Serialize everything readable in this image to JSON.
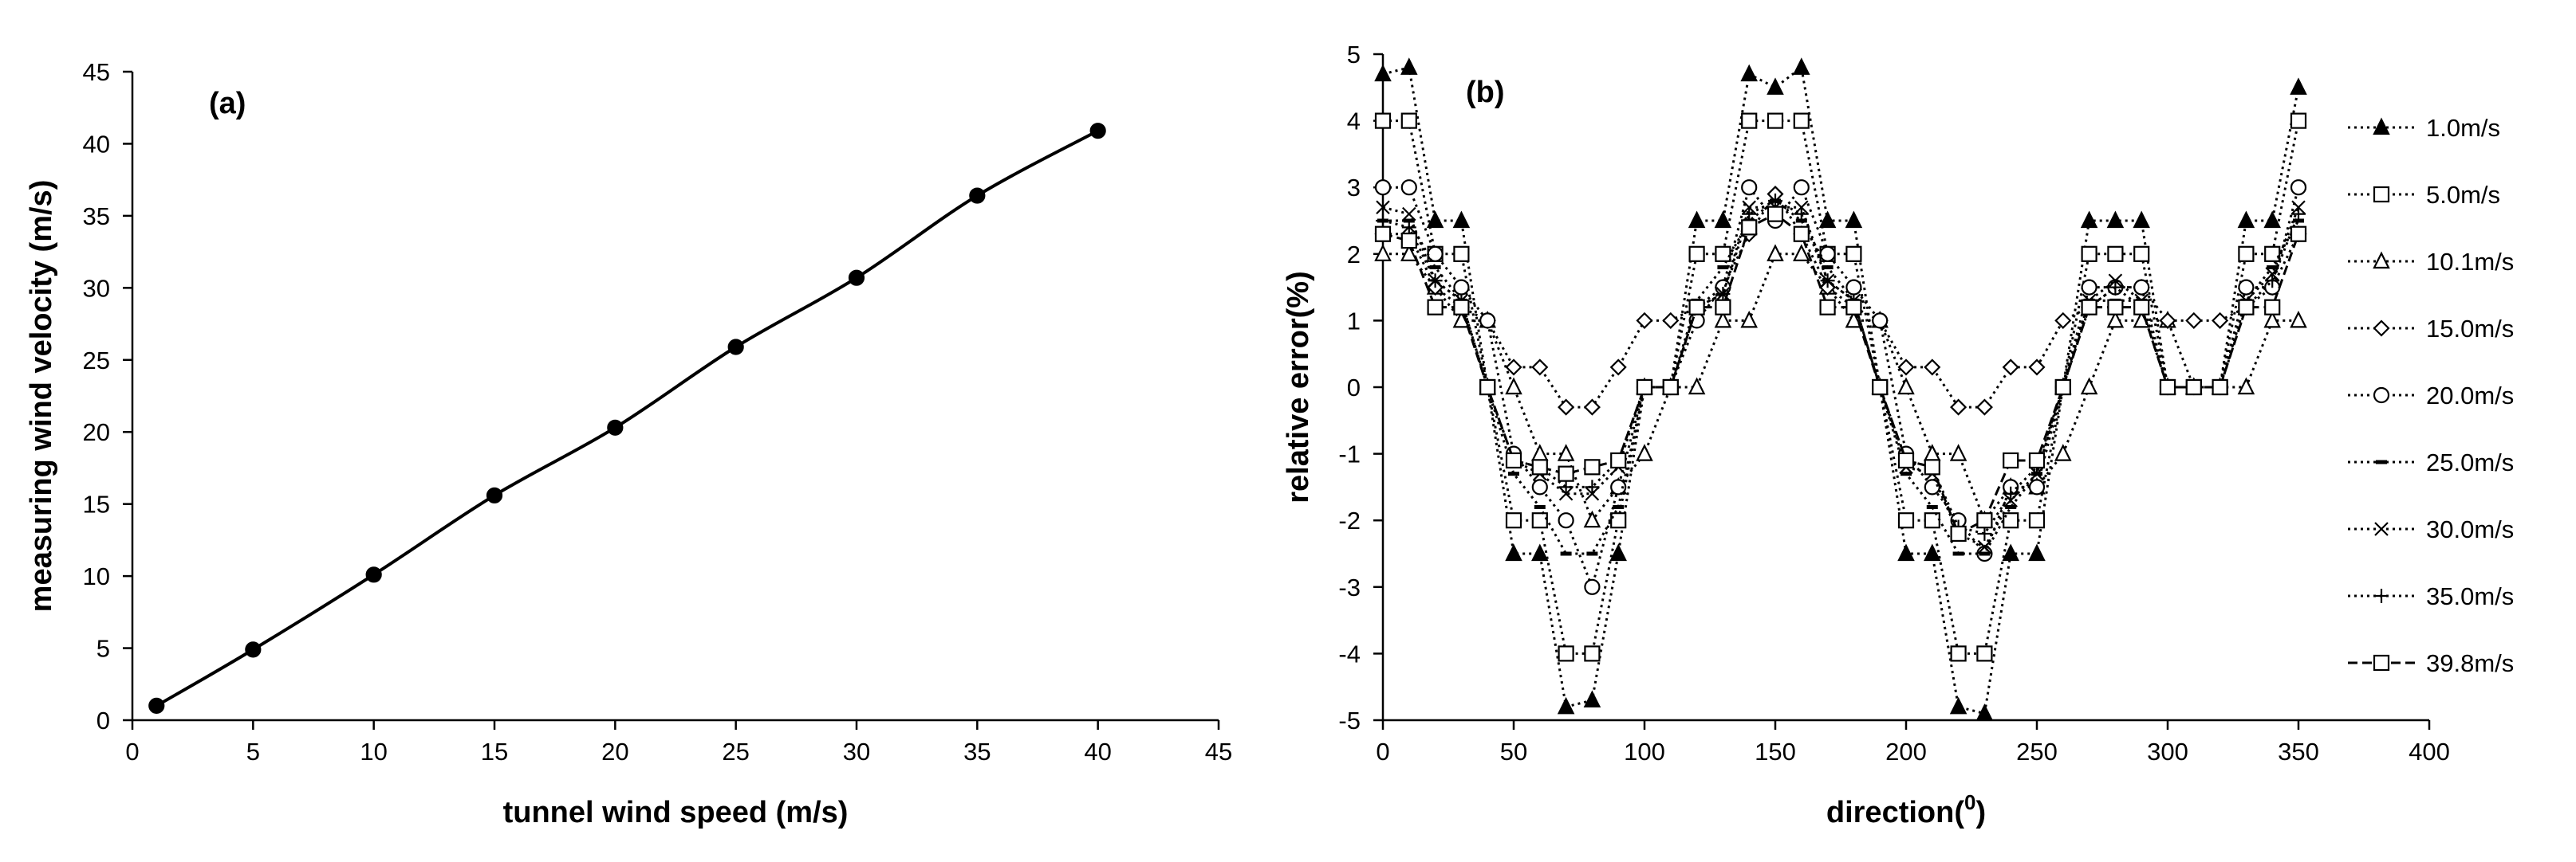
{
  "chart_data": [
    {
      "type": "line",
      "panel_label": "(a)",
      "xlabel": "tunnel wind speed (m/s)",
      "ylabel": "measuring wind velocity (m/s)",
      "xlim": [
        0,
        45
      ],
      "ylim": [
        0,
        45
      ],
      "xticks": [
        0,
        5,
        10,
        15,
        20,
        25,
        30,
        35,
        40,
        45
      ],
      "yticks": [
        0,
        5,
        10,
        15,
        20,
        25,
        30,
        35,
        40,
        45
      ],
      "series": [
        {
          "name": "measured",
          "marker": "circle-filled",
          "line": "solid",
          "x": [
            1,
            5,
            10,
            15,
            20,
            25,
            30,
            35,
            40
          ],
          "y": [
            1.0,
            4.9,
            10.1,
            15.6,
            20.3,
            25.9,
            30.7,
            36.4,
            40.9
          ]
        }
      ]
    },
    {
      "type": "line",
      "panel_label": "(b)",
      "xlabel": "direction(",
      "xlabel_sup": "0",
      "xlabel_end": ")",
      "ylabel": "relative error(%)",
      "xlim": [
        0,
        400
      ],
      "ylim": [
        -5,
        5
      ],
      "xticks": [
        0,
        50,
        100,
        150,
        200,
        250,
        300,
        350,
        400
      ],
      "yticks": [
        5,
        4,
        3,
        2,
        1,
        0,
        -1,
        -2,
        -3,
        -4,
        -5
      ],
      "x": [
        0,
        10,
        20,
        30,
        40,
        50,
        60,
        70,
        80,
        90,
        100,
        110,
        120,
        130,
        140,
        150,
        160,
        170,
        180,
        190,
        200,
        210,
        220,
        230,
        240,
        250,
        260,
        270,
        280,
        290,
        300,
        310,
        320,
        330,
        340,
        350
      ],
      "series": [
        {
          "name": "1.0m/s",
          "marker": "triangle-filled",
          "line": "dotted",
          "values": [
            4.7,
            4.8,
            2.5,
            2.5,
            0,
            -2.5,
            -2.5,
            -4.8,
            -4.7,
            -2.5,
            0,
            0,
            2.5,
            2.5,
            4.7,
            4.5,
            4.8,
            2.5,
            2.5,
            0,
            -2.5,
            -2.5,
            -4.8,
            -4.9,
            -2.5,
            -2.5,
            0,
            2.5,
            2.5,
            2.5,
            0,
            0,
            0,
            2.5,
            2.5,
            4.5
          ]
        },
        {
          "name": "5.0m/s",
          "marker": "square-open",
          "line": "dotted",
          "values": [
            4.0,
            4.0,
            2.0,
            2.0,
            0,
            -2.0,
            -2.0,
            -4.0,
            -4.0,
            -2.0,
            0,
            0,
            2.0,
            2.0,
            4.0,
            4.0,
            4.0,
            2.0,
            2.0,
            0,
            -2.0,
            -2.0,
            -4.0,
            -4.0,
            -2.0,
            -2.0,
            0,
            2.0,
            2.0,
            2.0,
            0,
            0,
            0,
            2.0,
            2.0,
            4.0
          ]
        },
        {
          "name": "10.1m/s",
          "marker": "triangle-open",
          "line": "dotted",
          "values": [
            2.0,
            2.0,
            1.5,
            1.0,
            1.0,
            0,
            -1.0,
            -1.0,
            -2.0,
            -1.5,
            -1.0,
            0,
            0,
            1.0,
            1.0,
            2.0,
            2.0,
            1.5,
            1.0,
            1.0,
            0,
            -1.0,
            -1.0,
            -2.0,
            -1.5,
            -1.5,
            -1.0,
            0,
            1.0,
            1.0,
            1.0,
            0,
            0,
            0,
            1.0,
            1.0
          ]
        },
        {
          "name": "15.0m/s",
          "marker": "diamond-open",
          "line": "dotted",
          "values": [
            2.3,
            2.3,
            1.5,
            1.2,
            1.0,
            0.3,
            0.3,
            -0.3,
            -0.3,
            0.3,
            1.0,
            1.0,
            1.2,
            1.5,
            2.3,
            2.9,
            2.3,
            1.5,
            1.2,
            1.0,
            0.3,
            0.3,
            -0.3,
            -0.3,
            0.3,
            0.3,
            1.0,
            1.2,
            1.5,
            1.5,
            1.0,
            1.0,
            1.0,
            1.2,
            1.5,
            2.3
          ]
        },
        {
          "name": "20.0m/s",
          "marker": "circle-open",
          "line": "dotted",
          "values": [
            3.0,
            3.0,
            2.0,
            1.5,
            1.0,
            -1.0,
            -1.5,
            -2.0,
            -3.0,
            -1.5,
            0,
            0,
            1.0,
            1.5,
            3.0,
            2.5,
            3.0,
            2.0,
            1.5,
            1.0,
            -1.0,
            -1.5,
            -2.0,
            -2.5,
            -1.5,
            -1.5,
            0,
            1.5,
            1.5,
            1.5,
            0,
            0,
            0,
            1.5,
            1.5,
            3.0
          ]
        },
        {
          "name": "25.0m/s",
          "marker": "dash",
          "line": "dotted",
          "values": [
            2.5,
            2.5,
            1.8,
            1.3,
            0,
            -1.3,
            -1.8,
            -2.5,
            -2.5,
            -1.8,
            0,
            0,
            1.3,
            1.8,
            2.5,
            2.8,
            2.5,
            1.8,
            1.3,
            0,
            -1.3,
            -1.8,
            -2.5,
            -2.5,
            -1.8,
            -1.3,
            0,
            1.3,
            1.3,
            1.3,
            0,
            0,
            0,
            1.3,
            1.8,
            2.5
          ]
        },
        {
          "name": "30.0m/s",
          "marker": "x",
          "line": "dotted",
          "values": [
            2.7,
            2.6,
            1.6,
            1.3,
            0,
            -1.1,
            -1.3,
            -1.6,
            -1.6,
            -1.2,
            0,
            0,
            1.2,
            1.4,
            2.7,
            2.7,
            2.7,
            1.6,
            1.3,
            0,
            -1.2,
            -1.3,
            -2.2,
            -2.4,
            -1.7,
            -1.3,
            0,
            1.3,
            1.6,
            1.3,
            0,
            0,
            0,
            1.3,
            1.7,
            2.7
          ]
        },
        {
          "name": "35.0m/s",
          "marker": "plus",
          "line": "dotted",
          "values": [
            2.5,
            2.4,
            1.6,
            1.3,
            0,
            -1.1,
            -1.2,
            -1.5,
            -1.5,
            -1.1,
            0,
            0,
            1.2,
            1.4,
            2.6,
            2.8,
            2.6,
            1.6,
            1.3,
            0,
            -1.1,
            -1.2,
            -2.1,
            -2.2,
            -1.6,
            -1.2,
            0,
            1.2,
            1.5,
            1.2,
            0,
            0,
            0,
            1.2,
            1.6,
            2.6
          ]
        },
        {
          "name": "39.8m/s",
          "marker": "square-open",
          "line": "dashed",
          "values": [
            2.3,
            2.2,
            1.2,
            1.2,
            0,
            -1.1,
            -1.2,
            -1.3,
            -1.2,
            -1.1,
            0,
            0,
            1.2,
            1.2,
            2.4,
            2.6,
            2.3,
            1.2,
            1.2,
            0,
            -1.1,
            -1.2,
            -2.2,
            -2.0,
            -1.1,
            -1.1,
            0,
            1.2,
            1.2,
            1.2,
            0,
            0,
            0,
            1.2,
            1.2,
            2.3
          ]
        }
      ]
    }
  ]
}
